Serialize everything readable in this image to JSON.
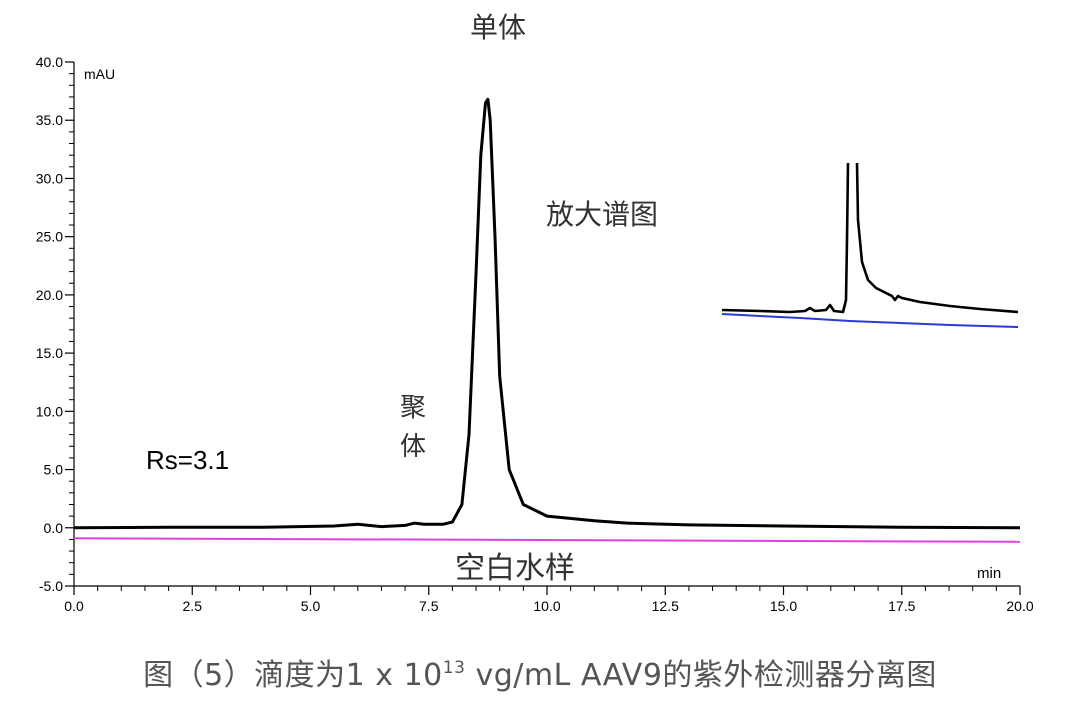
{
  "caption": {
    "prefix": "图（5）滴度为1 x 10",
    "superscript": "13",
    "suffix": " vg/mL AAV9的紫外检测器分离图"
  },
  "chart_data": {
    "type": "line",
    "ylabel": "mAU",
    "xlabel": "min",
    "xlim": [
      0,
      20
    ],
    "ylim": [
      -5,
      40
    ],
    "xticks": [
      "0.0",
      "2.5",
      "5.0",
      "7.5",
      "10.0",
      "12.5",
      "15.0",
      "17.5",
      "20.0"
    ],
    "yticks": [
      "-5.0",
      "0.0",
      "5.0",
      "10.0",
      "15.0",
      "20.0",
      "25.0",
      "30.0",
      "35.0",
      "40.0"
    ],
    "grid": false,
    "colors": {
      "sample": "#000000",
      "blank": "#e040e0",
      "inset_blank": "#2a3ad8"
    },
    "series": [
      {
        "x": [
          0,
          2,
          4,
          5.5,
          6,
          6.5,
          7,
          7.2,
          7.4,
          7.8,
          8.0,
          8.2,
          8.35,
          8.5,
          8.6,
          8.7,
          8.75,
          8.8,
          8.9,
          9.0,
          9.2,
          9.5,
          10.0,
          11.0,
          11.7,
          13,
          15,
          17.5,
          20
        ],
        "y": [
          0.0,
          0.05,
          0.05,
          0.15,
          0.3,
          0.1,
          0.2,
          0.4,
          0.3,
          0.3,
          0.5,
          2.0,
          8.0,
          22.0,
          32.0,
          36.5,
          36.8,
          35.0,
          25.0,
          13.0,
          5.0,
          2.0,
          1.0,
          0.6,
          0.4,
          0.25,
          0.15,
          0.05,
          0.0
        ]
      },
      {
        "x": [
          0,
          20
        ],
        "y": [
          -0.9,
          -1.2
        ]
      }
    ],
    "annotations": {
      "monomer": "单体",
      "aggregate_line1": "聚",
      "aggregate_line2": "体",
      "resolution": "Rs=3.1",
      "blank": "空白水样",
      "zoom": "放大谱图"
    }
  }
}
